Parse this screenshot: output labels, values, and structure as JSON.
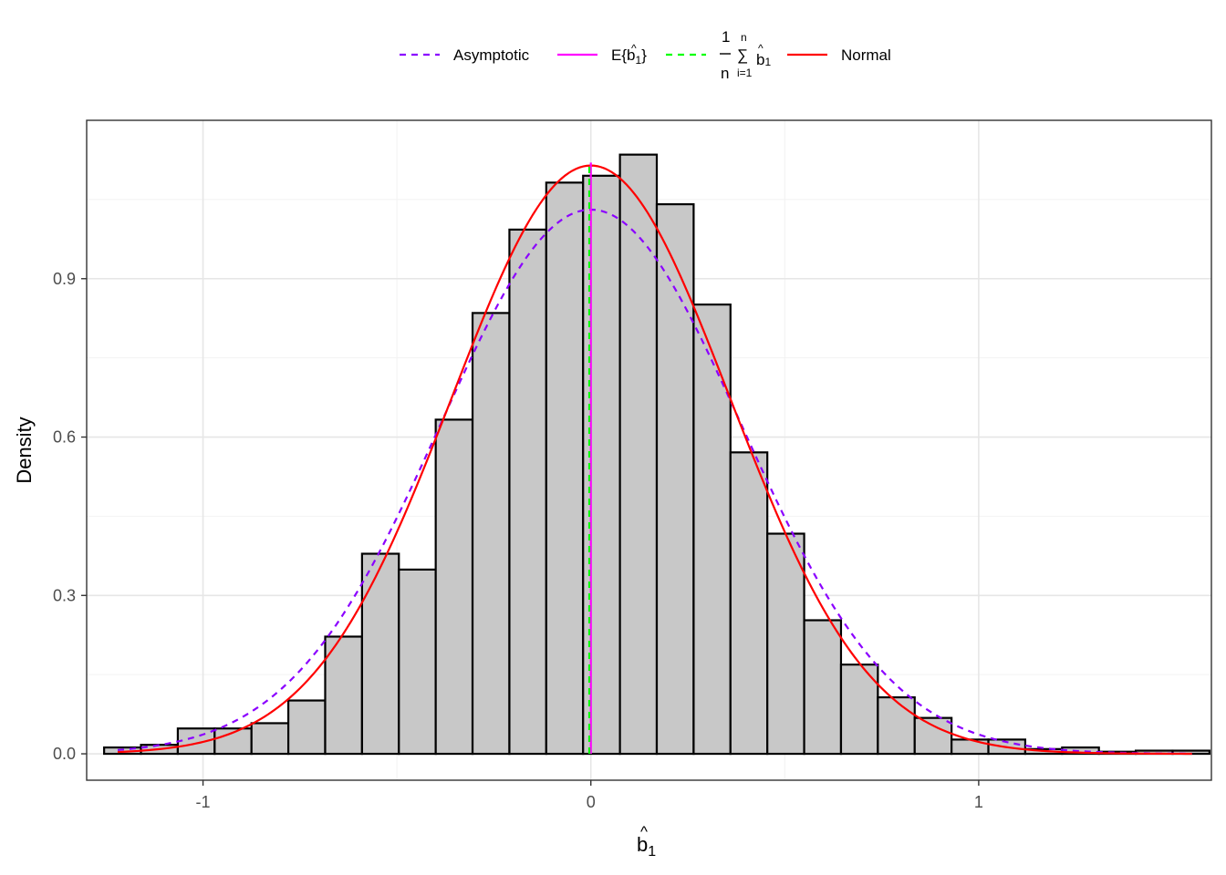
{
  "chart_data": {
    "type": "bar",
    "ylabel": "Density",
    "xlabel_base": "b",
    "xlabel_hat": "^",
    "xlabel_sub": "1",
    "xlim": [
      -1.3,
      1.6
    ],
    "ylim": [
      -0.05,
      1.2
    ],
    "x_ticks": [
      -1,
      0,
      1
    ],
    "x_tick_labels": [
      "-1",
      "0",
      "1"
    ],
    "y_ticks": [
      0.0,
      0.3,
      0.6,
      0.9
    ],
    "y_tick_labels": [
      "0.0",
      "0.3",
      "0.6",
      "0.9"
    ],
    "grid": true,
    "legend_position": "top",
    "bin_width": 0.095,
    "bins": [
      {
        "x0": -1.255,
        "density": 0.012
      },
      {
        "x0": -1.16,
        "density": 0.017
      },
      {
        "x0": -1.065,
        "density": 0.048
      },
      {
        "x0": -0.97,
        "density": 0.048
      },
      {
        "x0": -0.875,
        "density": 0.058
      },
      {
        "x0": -0.78,
        "density": 0.101
      },
      {
        "x0": -0.685,
        "density": 0.222
      },
      {
        "x0": -0.59,
        "density": 0.379
      },
      {
        "x0": -0.495,
        "density": 0.349
      },
      {
        "x0": -0.4,
        "density": 0.633
      },
      {
        "x0": -0.305,
        "density": 0.835
      },
      {
        "x0": -0.21,
        "density": 0.993
      },
      {
        "x0": -0.115,
        "density": 1.082
      },
      {
        "x0": -0.02,
        "density": 1.095
      },
      {
        "x0": 0.075,
        "density": 1.135
      },
      {
        "x0": 0.17,
        "density": 1.041
      },
      {
        "x0": 0.265,
        "density": 0.851
      },
      {
        "x0": 0.36,
        "density": 0.571
      },
      {
        "x0": 0.455,
        "density": 0.417
      },
      {
        "x0": 0.55,
        "density": 0.253
      },
      {
        "x0": 0.645,
        "density": 0.169
      },
      {
        "x0": 0.74,
        "density": 0.107
      },
      {
        "x0": 0.835,
        "density": 0.068
      },
      {
        "x0": 0.93,
        "density": 0.027
      },
      {
        "x0": 1.025,
        "density": 0.027
      },
      {
        "x0": 1.12,
        "density": 0.009
      },
      {
        "x0": 1.215,
        "density": 0.012
      },
      {
        "x0": 1.31,
        "density": 0.004
      },
      {
        "x0": 1.405,
        "density": 0.006
      },
      {
        "x0": 1.5,
        "density": 0.006
      }
    ],
    "series": [
      {
        "name": "Asymptotic",
        "kind": "density-curve",
        "mean": 0.0,
        "sd": 0.387,
        "color": "#8B00FF",
        "dash": "dashed",
        "x_range": [
          -1.22,
          1.55
        ]
      },
      {
        "name_prefix": "E{",
        "name_base": "b",
        "name_sub": "1",
        "name_suffix": "}",
        "kind": "vline",
        "x": 0.0,
        "color": "#FF00FF",
        "dash": "solid"
      },
      {
        "name_num": "1",
        "name_den": "n",
        "name_sum_top": "n",
        "name_sum_bottom": "i=1",
        "name_sum": "∑",
        "name_base": "b",
        "name_sub": "1",
        "kind": "vline",
        "x": -0.004,
        "color": "#00FF00",
        "dash": "dashed"
      },
      {
        "name": "Normal",
        "kind": "density-curve",
        "mean": 0.0,
        "sd": 0.358,
        "color": "#FF0000",
        "dash": "solid",
        "x_range": [
          -1.22,
          1.55
        ]
      }
    ],
    "colors": {
      "bar_fill": "#C8C8C8",
      "bar_stroke": "#000000",
      "grid_major": "#E6E6E6",
      "grid_minor": "#F2F2F2",
      "panel_border": "#333333"
    }
  }
}
